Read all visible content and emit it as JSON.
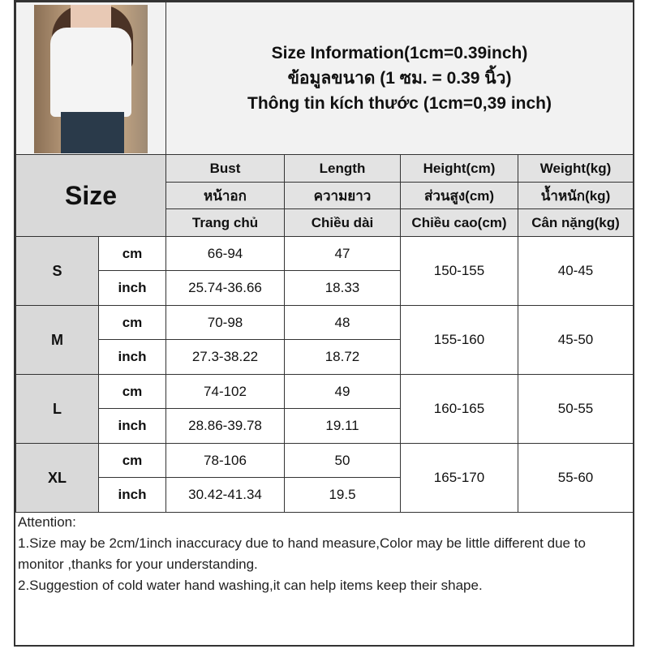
{
  "title_lines": [
    "Size Information(1cm=0.39inch)",
    "ข้อมูลขนาด (1 ซม. = 0.39 นิ้ว)",
    "Thông tin kích thước (1cm=0,39 inch)"
  ],
  "size_label": "Size",
  "headers": [
    [
      "Bust",
      "Length",
      "Height(cm)",
      "Weight(kg)"
    ],
    [
      "หน้าอก",
      "ความยาว",
      "ส่วนสูง(cm)",
      "น้ำหนัก(kg)"
    ],
    [
      "Trang chủ",
      "Chiều dài",
      "Chiều cao(cm)",
      "Cân nặng(kg)"
    ]
  ],
  "rows": [
    {
      "size": "S",
      "cm_label": "cm",
      "inch_label": "inch",
      "bust_cm": "66-94",
      "length_cm": "47",
      "bust_inch": "25.74-36.66",
      "length_inch": "18.33",
      "height": "150-155",
      "weight": "40-45"
    },
    {
      "size": "M",
      "cm_label": "cm",
      "inch_label": "inch",
      "bust_cm": "70-98",
      "length_cm": "48",
      "bust_inch": "27.3-38.22",
      "length_inch": "18.72",
      "height": "155-160",
      "weight": "45-50"
    },
    {
      "size": "L",
      "cm_label": "cm",
      "inch_label": "inch",
      "bust_cm": "74-102",
      "length_cm": "49",
      "bust_inch": "28.86-39.78",
      "length_inch": "19.11",
      "height": "160-165",
      "weight": "50-55"
    },
    {
      "size": "XL",
      "cm_label": "cm",
      "inch_label": "inch",
      "bust_cm": "78-106",
      "length_cm": "50",
      "bust_inch": "30.42-41.34",
      "length_inch": "19.5",
      "height": "165-170",
      "weight": "55-60"
    }
  ],
  "attention": {
    "heading": "Attention:",
    "line1": "1.Size may be 2cm/1inch inaccuracy due to hand measure,Color may be little different due to monitor ,thanks for your understanding.",
    "line2": "2.Suggestion of cold water hand washing,it can help items keep their shape."
  }
}
